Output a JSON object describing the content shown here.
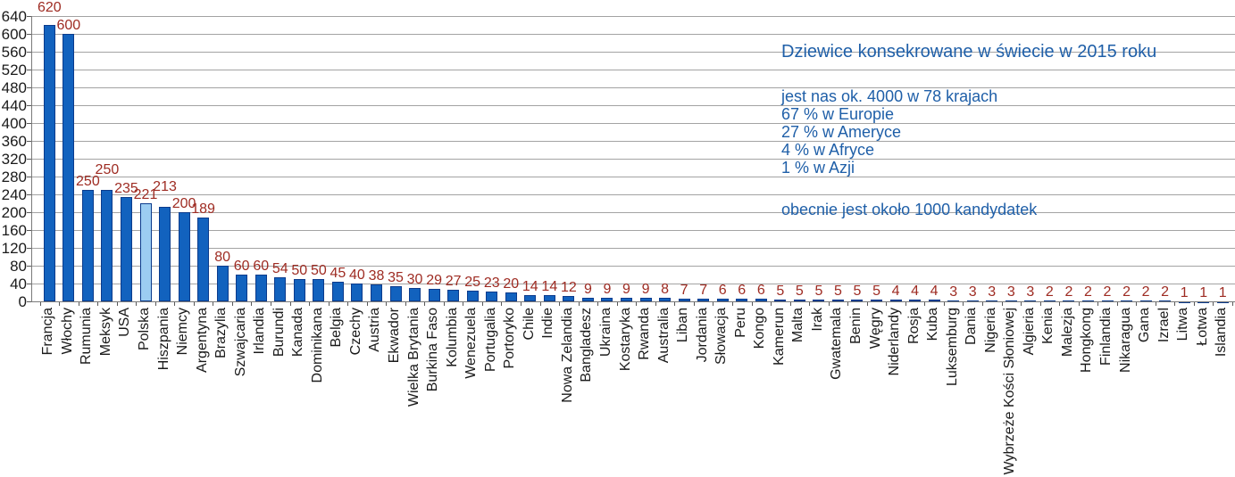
{
  "chart_data": {
    "type": "bar",
    "title": "Dziewice konsekrowane w świecie w 2015 roku",
    "categories": [
      "Francja",
      "Włochy",
      "Rumunia",
      "Meksyk",
      "USA",
      "Polska",
      "Hiszpania",
      "Niemcy",
      "Argentyna",
      "Brazylia",
      "Szwajcaria",
      "Irlandia",
      "Burundi",
      "Kanada",
      "Dominikana",
      "Belgia",
      "Czechy",
      "Austria",
      "Ekwador",
      "Wielka Brytania",
      "Burkina Faso",
      "Kolumbia",
      "Wenezuela",
      "Portugalia",
      "Portoryko",
      "Chile",
      "Indie",
      "Nowa Zelandia",
      "Bangladesz",
      "Ukraina",
      "Kostaryka",
      "Rwanda",
      "Australia",
      "Liban",
      "Jordania",
      "Słowacja",
      "Peru",
      "Kongo",
      "Kamerun",
      "Malta",
      "Irak",
      "Gwatemala",
      "Benin",
      "Węgry",
      "Niderlandy",
      "Rosja",
      "Kuba",
      "Luksemburg",
      "Dania",
      "Nigeria",
      "Wybrzeże Kości Słoniowej",
      "Algieria",
      "Kenia",
      "Malezja",
      "Hongkong",
      "Finlandia",
      "Nikaragua",
      "Gana",
      "Izrael",
      "Litwa",
      "Łotwa",
      "Islandia"
    ],
    "values": [
      620,
      600,
      250,
      250,
      235,
      221,
      213,
      200,
      189,
      80,
      60,
      60,
      54,
      50,
      50,
      45,
      40,
      38,
      35,
      30,
      29,
      27,
      25,
      23,
      20,
      14,
      14,
      12,
      9,
      9,
      9,
      9,
      8,
      7,
      7,
      6,
      6,
      6,
      5,
      5,
      5,
      5,
      5,
      5,
      4,
      4,
      4,
      3,
      3,
      3,
      3,
      3,
      2,
      2,
      2,
      2,
      2,
      2,
      2,
      1,
      1,
      1
    ],
    "highlight_category": "Polska",
    "ylim": [
      0,
      640
    ],
    "ytick_step": 40,
    "grid": true,
    "legend": "none",
    "colors": {
      "bar": "#1262be",
      "bar_border": "#0b3b8c",
      "highlight_bar": "#9ccdf2",
      "value_label": "#9e2b22",
      "annotation_text": "#1f5fa8",
      "axis_text": "#1a1a1a",
      "gridline": "#a3a3a3"
    },
    "annotations": [
      "jest nas ok. 4000 w 78 krajach",
      "67 % w Europie",
      "27 % w Ameryce",
      "4 % w Afryce",
      "1 % w Azji"
    ],
    "footer_annotation": "obecnie jest około 1000 kandydatek"
  }
}
